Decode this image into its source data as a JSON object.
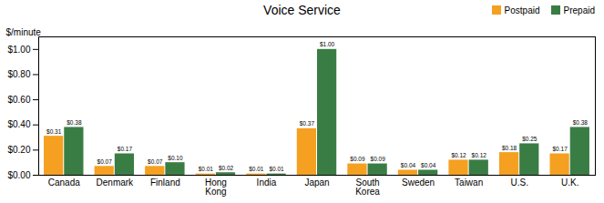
{
  "chart_data": {
    "type": "bar",
    "title": "Voice Service",
    "ylabel": "$/minute",
    "categories": [
      "Canada",
      "Denmark",
      "Finland",
      "Hong\nKong",
      "India",
      "Japan",
      "South\nKorea",
      "Sweden",
      "Taiwan",
      "U.S.",
      "U.K."
    ],
    "series": [
      {
        "name": "Postpaid",
        "color": "#F5A020",
        "values": [
          0.31,
          0.07,
          0.07,
          0.01,
          0.01,
          0.37,
          0.09,
          0.04,
          0.12,
          0.18,
          0.17
        ],
        "value_labels": [
          "$0.31",
          "$0.07",
          "$0.07",
          "$0.01",
          "$0.01",
          "$0.37",
          "$0.09",
          "$0.04",
          "$0.12",
          "$0.18",
          "$0.17"
        ]
      },
      {
        "name": "Prepaid",
        "color": "#3A7D44",
        "values": [
          0.38,
          0.17,
          0.1,
          0.02,
          0.01,
          1.0,
          0.09,
          0.04,
          0.12,
          0.25,
          0.38
        ],
        "value_labels": [
          "$0.38",
          "$0.17",
          "$0.10",
          "$0.02",
          "$0.01",
          "$1.00",
          "$0.09",
          "$0.04",
          "$0.12",
          "$0.25",
          "$0.38"
        ]
      }
    ],
    "ylim": [
      0,
      1.1
    ],
    "yticks": [
      {
        "value": 0.0,
        "label": "$0.00"
      },
      {
        "value": 0.2,
        "label": "$0.20"
      },
      {
        "value": 0.4,
        "label": "$0.40"
      },
      {
        "value": 0.6,
        "label": "$0.60"
      },
      {
        "value": 0.8,
        "label": "$0.80"
      },
      {
        "value": 1.0,
        "label": "$1.00"
      }
    ],
    "grid": false,
    "legend": "upper right",
    "data_labels": true
  }
}
